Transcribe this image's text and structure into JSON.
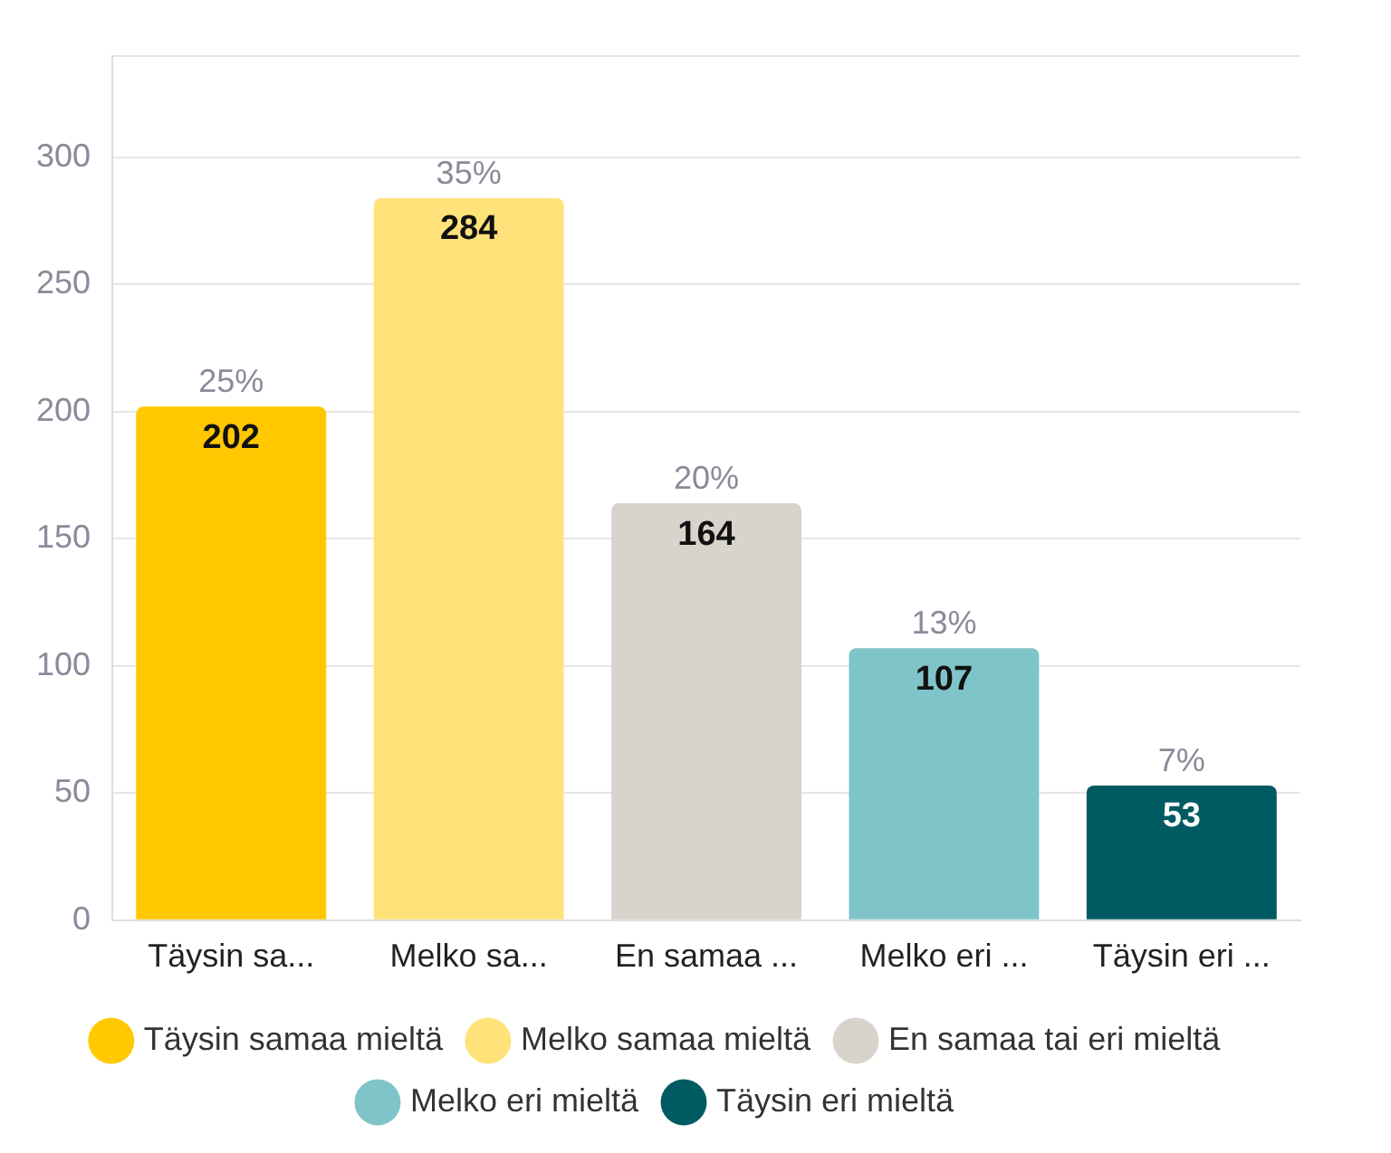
{
  "chart_data": {
    "type": "bar",
    "categories": [
      "Täysin sa...",
      "Melko sa...",
      "En samaa ...",
      "Melko eri ...",
      "Täysin eri ..."
    ],
    "series": [
      {
        "name": "Täysin samaa mieltä",
        "color": "#ffc800",
        "values": [
          202,
          null,
          null,
          null,
          null
        ],
        "value_labels": [
          "202",
          null,
          null,
          null,
          null
        ]
      },
      {
        "name": "Melko samaa mieltä",
        "color": "#ffe27a",
        "values": [
          null,
          284,
          null,
          null,
          null
        ],
        "value_labels": [
          null,
          "284",
          null,
          null,
          null
        ]
      },
      {
        "name": "En samaa tai eri mieltä",
        "color": "#d8d4cc",
        "values": [
          null,
          null,
          164,
          null,
          null
        ],
        "value_labels": [
          null,
          null,
          "164",
          null,
          null
        ]
      },
      {
        "name": "Melko eri mieltä",
        "color": "#7fc4c8",
        "values": [
          null,
          null,
          null,
          107,
          null
        ],
        "value_labels": [
          null,
          null,
          null,
          "107",
          null
        ]
      },
      {
        "name": "Täysin eri mieltä",
        "color": "#005a62",
        "values": [
          null,
          null,
          null,
          null,
          53
        ],
        "value_labels": [
          null,
          null,
          null,
          null,
          "53"
        ]
      }
    ],
    "annotations": [
      {
        "text": "25%",
        "x": "Täysin sa...",
        "y": 202
      },
      {
        "text": "35%",
        "x": "Melko sa...",
        "y": 284
      },
      {
        "text": "20%",
        "x": "En samaa ...",
        "y": 164
      },
      {
        "text": "13%",
        "x": "Melko eri ...",
        "y": 107
      },
      {
        "text": "7%",
        "x": "Täysin eri ...",
        "y": 53
      }
    ],
    "ylim": [
      0,
      340
    ],
    "yticks": [
      0,
      50,
      100,
      150,
      200,
      250,
      300
    ],
    "grid": "y",
    "legend": "bottom",
    "marker": "circle"
  }
}
